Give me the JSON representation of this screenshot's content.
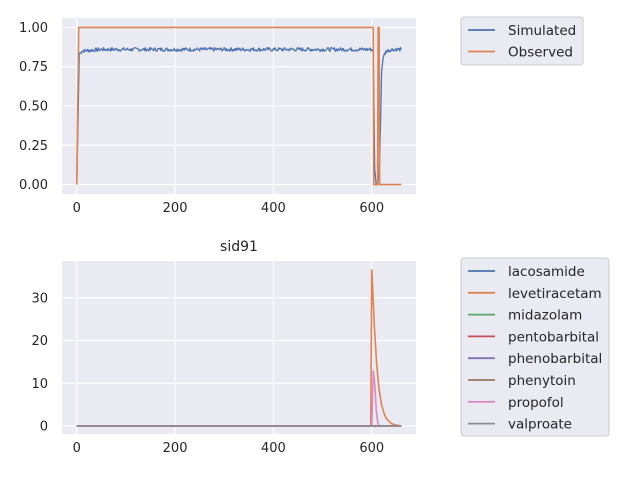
{
  "chart_data": [
    {
      "type": "line",
      "title": "",
      "xlabel": "",
      "ylabel": "",
      "xlim": [
        -30,
        690
      ],
      "ylim": [
        -0.06,
        1.06
      ],
      "xticks": [
        0,
        200,
        400,
        600
      ],
      "yticks": [
        0.0,
        0.25,
        0.5,
        0.75,
        1.0
      ],
      "xtick_labels": [
        "0",
        "200",
        "400",
        "600"
      ],
      "ytick_labels": [
        "0.00",
        "0.25",
        "0.50",
        "0.75",
        "1.00"
      ],
      "grid": true,
      "legend_position": "outside-right-top",
      "series": [
        {
          "name": "Simulated",
          "color": "#4c72b0",
          "noise": 0.012,
          "x": [
            0,
            2,
            5,
            10,
            50,
            100,
            150,
            200,
            250,
            300,
            350,
            400,
            450,
            500,
            550,
            600,
            603,
            606,
            609,
            612,
            615,
            618,
            620,
            623,
            626,
            630,
            640,
            650,
            660
          ],
          "y": [
            0.0,
            0.3,
            0.83,
            0.85,
            0.86,
            0.86,
            0.86,
            0.86,
            0.86,
            0.86,
            0.86,
            0.86,
            0.86,
            0.86,
            0.86,
            0.86,
            0.85,
            0.1,
            0.0,
            0.01,
            0.05,
            0.4,
            0.72,
            0.8,
            0.83,
            0.85,
            0.86,
            0.86,
            0.86
          ]
        },
        {
          "name": "Observed",
          "color": "#dd8452",
          "x": [
            0,
            4,
            600,
            603,
            604,
            612,
            613,
            615,
            616,
            620,
            660
          ],
          "y": [
            0.0,
            1.0,
            1.0,
            1.0,
            0.0,
            0.0,
            1.0,
            1.0,
            0.0,
            0.0,
            0.0
          ]
        }
      ]
    },
    {
      "type": "line",
      "title": "sid91",
      "xlabel": "",
      "ylabel": "",
      "xlim": [
        -30,
        690
      ],
      "ylim": [
        -1.85,
        38.6
      ],
      "xticks": [
        0,
        200,
        400,
        600
      ],
      "yticks": [
        0,
        10,
        20,
        30
      ],
      "xtick_labels": [
        "0",
        "200",
        "400",
        "600"
      ],
      "ytick_labels": [
        "0",
        "10",
        "20",
        "30"
      ],
      "grid": true,
      "legend_position": "outside-right-top",
      "series": [
        {
          "name": "lacosamide",
          "color": "#4c72b0",
          "x": [
            0,
            660
          ],
          "y": [
            0,
            0
          ]
        },
        {
          "name": "levetiracetam",
          "color": "#dd8452",
          "x": [
            0,
            598,
            600,
            602,
            605,
            610,
            615,
            620,
            625,
            630,
            640,
            650,
            660
          ],
          "y": [
            0,
            0,
            36.5,
            32,
            24,
            14.5,
            8.5,
            5,
            3,
            1.7,
            0.6,
            0.2,
            0.05
          ]
        },
        {
          "name": "midazolam",
          "color": "#55a868",
          "x": [
            0,
            660
          ],
          "y": [
            0,
            0
          ]
        },
        {
          "name": "pentobarbital",
          "color": "#c44e52",
          "x": [
            0,
            660
          ],
          "y": [
            0,
            0
          ]
        },
        {
          "name": "phenobarbital",
          "color": "#8172b3",
          "x": [
            0,
            660
          ],
          "y": [
            0,
            0
          ]
        },
        {
          "name": "phenytoin",
          "color": "#937860",
          "x": [
            0,
            660
          ],
          "y": [
            0,
            0
          ]
        },
        {
          "name": "propofol",
          "color": "#da8bc3",
          "x": [
            0,
            598,
            600,
            603,
            606,
            609,
            612,
            615,
            660
          ],
          "y": [
            0,
            0,
            0,
            12.9,
            10,
            4,
            1,
            0,
            0
          ]
        },
        {
          "name": "valproate",
          "color": "#8c8c8c",
          "x": [
            0,
            660
          ],
          "y": [
            0,
            0
          ]
        }
      ]
    }
  ]
}
